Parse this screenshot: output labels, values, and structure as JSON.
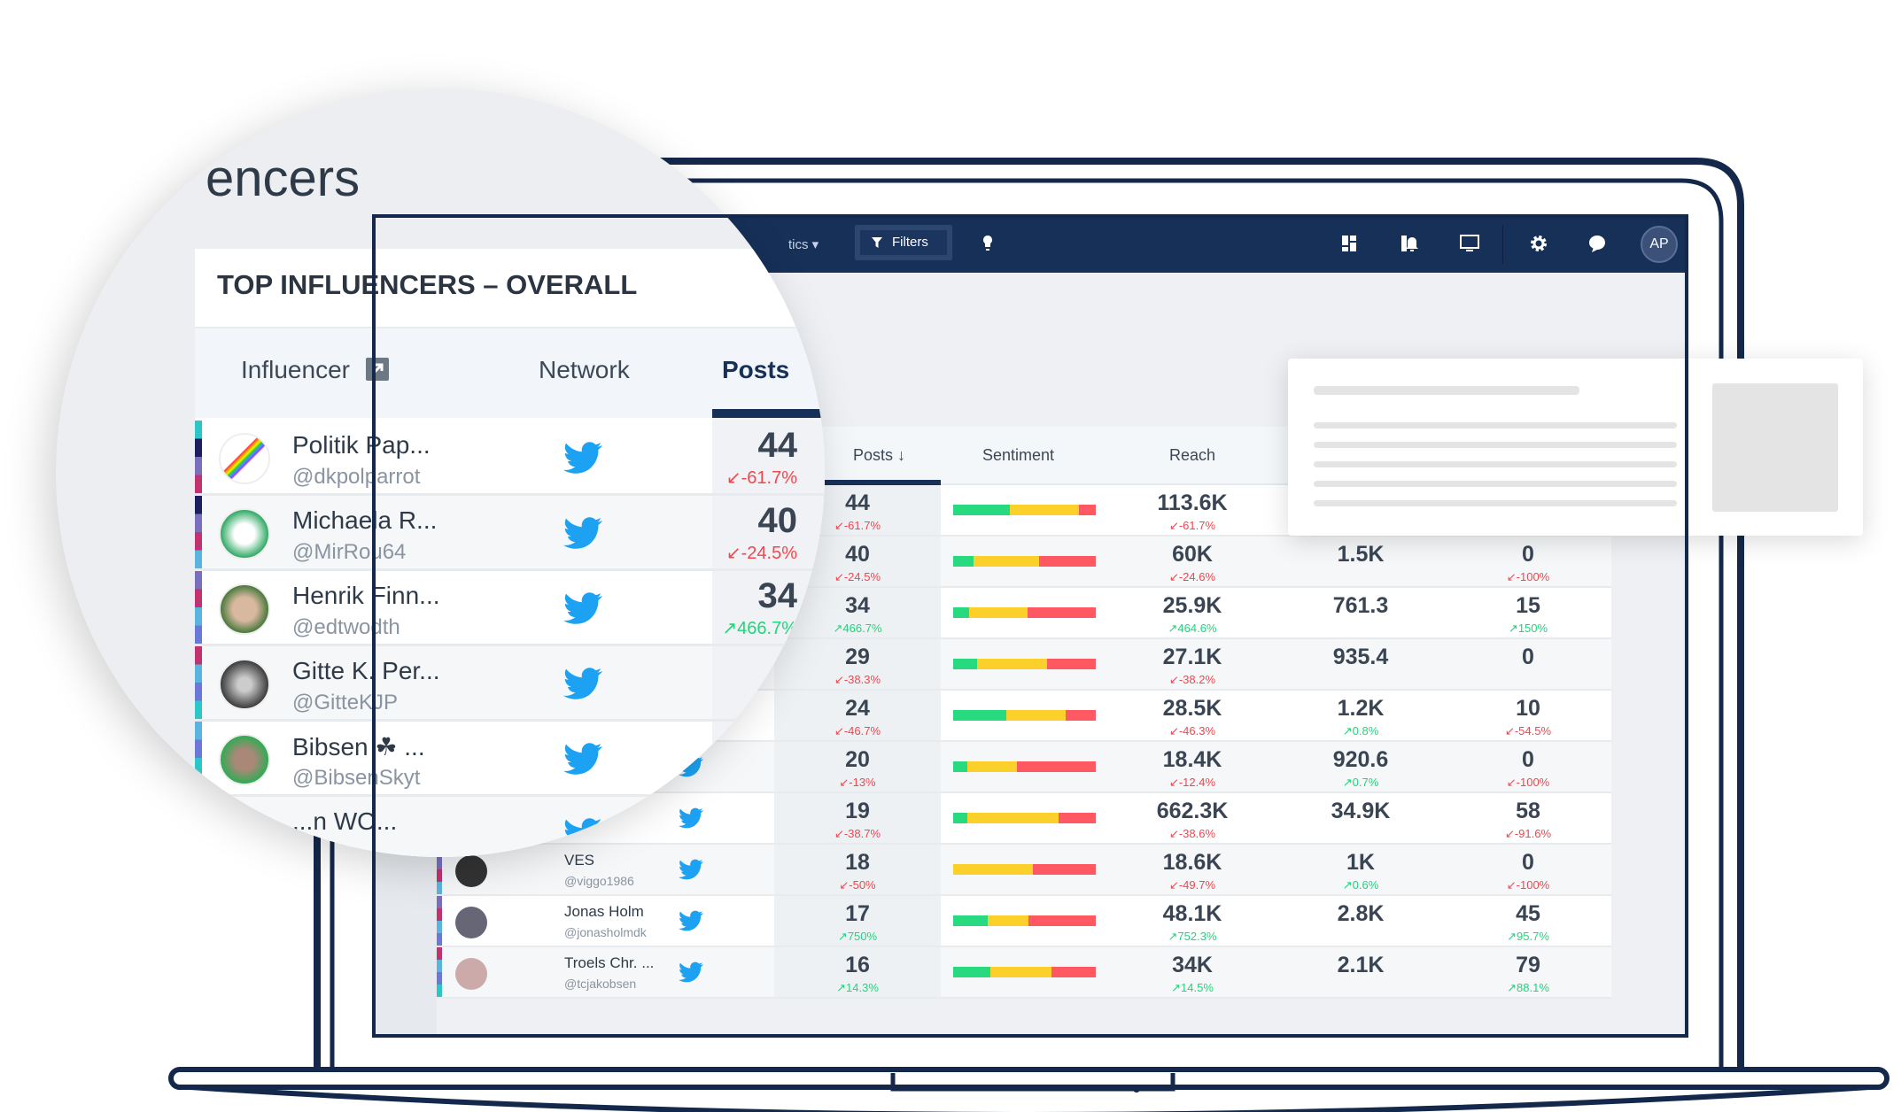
{
  "topbar": {
    "dropdown_label": "tics ▾",
    "filters_label": "Filters",
    "icons": [
      "filter-icon",
      "lightbulb-icon",
      "dashboard-icon",
      "alerts-icon",
      "monitor-icon",
      "gear-icon",
      "chat-icon"
    ],
    "avatar_initials": "AP"
  },
  "magnified": {
    "page_title_fragment": "encers",
    "widget_title": "TOP INFLUENCERS – OVERALL",
    "headers": {
      "influencer": "Influencer",
      "network": "Network",
      "posts": "Posts"
    },
    "rows": [
      {
        "name": "Politik Pap...",
        "handle": "@dkpolparrot",
        "network": "twitter",
        "posts": "44",
        "change": "-61.7%",
        "trend": "down"
      },
      {
        "name": "Michaela R...",
        "handle": "@MirRou64",
        "network": "twitter",
        "posts": "40",
        "change": "-24.5%",
        "trend": "down"
      },
      {
        "name": "Henrik Finn...",
        "handle": "@edtwodth",
        "network": "twitter",
        "posts": "34",
        "change": "466.7%",
        "trend": "up"
      },
      {
        "name": "Gitte K. Per...",
        "handle": "@GitteKJP",
        "network": "twitter",
        "posts": "",
        "change": "",
        "trend": ""
      },
      {
        "name": "Bibsen ☘ ...",
        "handle": "@BibsenSkyt",
        "network": "twitter",
        "posts": "",
        "change": "",
        "trend": ""
      },
      {
        "name": "...n WO...",
        "handle": "",
        "network": "twitter",
        "posts": "",
        "change": "",
        "trend": ""
      }
    ]
  },
  "table": {
    "headers": {
      "posts": "Posts ↓",
      "sentiment": "Sentiment",
      "reach": "Reach"
    },
    "colors": {
      "positive": "#27d97f",
      "neutral": "#fcd02b",
      "negative": "#fe5962",
      "up": "#1fd67a",
      "down": "#f0474f"
    },
    "rows": [
      {
        "name": "",
        "handle": "",
        "posts": "44",
        "posts_change": "-61.7%",
        "sentiment": [
          0.4,
          0.48,
          0.12
        ],
        "reach": "113.6K",
        "reach_change": "-61.7%",
        "c4": "",
        "c4_change": "",
        "c5": "",
        "c5_change": ""
      },
      {
        "name": "",
        "handle": "",
        "posts": "40",
        "posts_change": "-24.5%",
        "sentiment": [
          0.14,
          0.46,
          0.4
        ],
        "reach": "60K",
        "reach_change": "-24.6%",
        "c4": "1.5K",
        "c4_change": "",
        "c5": "0",
        "c5_change": "-100%"
      },
      {
        "name": "",
        "handle": "",
        "posts": "34",
        "posts_change": "466.7%",
        "sentiment": [
          0.11,
          0.41,
          0.48
        ],
        "reach": "25.9K",
        "reach_change": "464.6%",
        "c4": "761.3",
        "c4_change": "",
        "c5": "15",
        "c5_change": "150%"
      },
      {
        "name": "",
        "handle": "",
        "posts": "29",
        "posts_change": "-38.3%",
        "sentiment": [
          0.17,
          0.49,
          0.34
        ],
        "reach": "27.1K",
        "reach_change": "-38.2%",
        "c4": "935.4",
        "c4_change": "",
        "c5": "0",
        "c5_change": ""
      },
      {
        "name": "",
        "handle": "",
        "posts": "24",
        "posts_change": "-46.7%",
        "sentiment": [
          0.37,
          0.42,
          0.21
        ],
        "reach": "28.5K",
        "reach_change": "-46.3%",
        "c4": "1.2K",
        "c4_change": "0.8%",
        "c5": "10",
        "c5_change": "-54.5%"
      },
      {
        "name": "",
        "handle": "",
        "posts": "20",
        "posts_change": "-13%",
        "sentiment": [
          0.1,
          0.35,
          0.55
        ],
        "reach": "18.4K",
        "reach_change": "-12.4%",
        "c4": "920.6",
        "c4_change": "0.7%",
        "c5": "0",
        "c5_change": "-100%"
      },
      {
        "name": "",
        "handle": "",
        "posts": "19",
        "posts_change": "-38.7%",
        "sentiment": [
          0.1,
          0.64,
          0.26
        ],
        "reach": "662.3K",
        "reach_change": "-38.6%",
        "c4": "34.9K",
        "c4_change": "",
        "c5": "58",
        "c5_change": "-91.6%"
      },
      {
        "name": "VES",
        "handle": "@viggo1986",
        "posts": "18",
        "posts_change": "-50%",
        "sentiment": [
          0,
          0.56,
          0.44
        ],
        "reach": "18.6K",
        "reach_change": "-49.7%",
        "c4": "1K",
        "c4_change": "0.6%",
        "c5": "0",
        "c5_change": "-100%"
      },
      {
        "name": "Jonas Holm",
        "handle": "@jonasholmdk",
        "posts": "17",
        "posts_change": "750%",
        "sentiment": [
          0.24,
          0.29,
          0.47
        ],
        "reach": "48.1K",
        "reach_change": "752.3%",
        "c4": "2.8K",
        "c4_change": "",
        "c5": "45",
        "c5_change": "95.7%"
      },
      {
        "name": "Troels Chr. ...",
        "handle": "@tcjakobsen",
        "posts": "16",
        "posts_change": "14.3%",
        "sentiment": [
          0.26,
          0.43,
          0.31
        ],
        "reach": "34K",
        "reach_change": "14.5%",
        "c4": "2.1K",
        "c4_change": "",
        "c5": "79",
        "c5_change": "88.1%"
      }
    ]
  }
}
